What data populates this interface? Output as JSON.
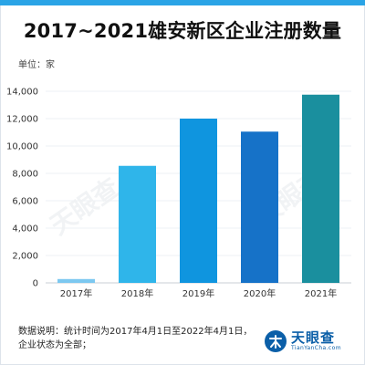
{
  "title": "2017~2021雄安新区企业注册数量",
  "unit_label": "单位：家",
  "note_line1": "数据说明：统计时间为2017年4月1日至2022年4月1日，",
  "note_line2": "企业状态为全部；",
  "brand": {
    "name_cn": "天眼查",
    "name_en": "TianYanCha.com",
    "color": "#0b5fa8"
  },
  "watermark_text": "天眼查",
  "chart_data": {
    "type": "bar",
    "title": "2017~2021雄安新区企业注册数量",
    "ylabel": "单位：家",
    "xlabel": "",
    "categories": [
      "2017年",
      "2018年",
      "2019年",
      "2020年",
      "2021年"
    ],
    "values": [
      280,
      8550,
      12000,
      11050,
      13750
    ],
    "ylim": [
      0,
      14000
    ],
    "yticks": [
      0,
      2000,
      4000,
      6000,
      8000,
      10000,
      12000,
      14000
    ],
    "ytick_labels": [
      "0",
      "2,000",
      "4,000",
      "6,000",
      "8,000",
      "10,000",
      "12,000",
      "14,000"
    ],
    "grid": true,
    "legend": "none",
    "bar_colors": [
      "#7cc8f0",
      "#2fb5ea",
      "#0f95df",
      "#1672c8",
      "#1a8f9e"
    ]
  }
}
